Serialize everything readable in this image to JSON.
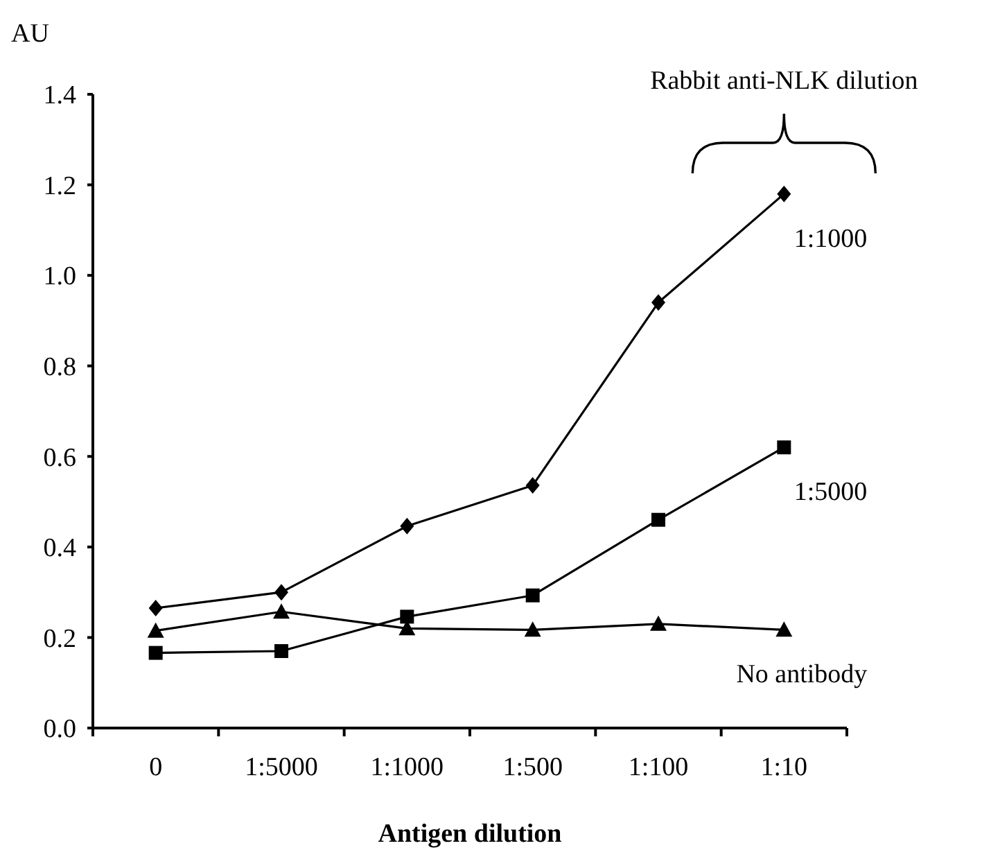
{
  "chart_data": {
    "type": "line",
    "ylabel": "AU",
    "xlabel": "Antigen dilution",
    "categories": [
      "0",
      "1:5000",
      "1:1000",
      "1:500",
      "1:100",
      "1:10"
    ],
    "series": [
      {
        "name": "1:1000",
        "color": "#000000",
        "marker": "diamond",
        "values": [
          0.265,
          0.3,
          0.446,
          0.536,
          0.94,
          1.18
        ]
      },
      {
        "name": "1:5000",
        "color": "#000000",
        "marker": "square",
        "values": [
          0.166,
          0.17,
          0.246,
          0.293,
          0.46,
          0.62
        ]
      },
      {
        "name": "No antibody",
        "color": "#000000",
        "marker": "triangle",
        "values": [
          0.215,
          0.257,
          0.22,
          0.217,
          0.23,
          0.217
        ]
      }
    ],
    "ylim": [
      0,
      1.4
    ],
    "yticks": [
      {
        "value": 0,
        "label": "0.0"
      },
      0.2,
      0.4,
      0.6,
      0.8,
      {
        "value": 1,
        "label": "1.0"
      },
      1.2,
      1.4
    ],
    "grid": false,
    "line_style": "solid",
    "annotations": [
      "Rabbit anti-NLK dilution"
    ]
  }
}
